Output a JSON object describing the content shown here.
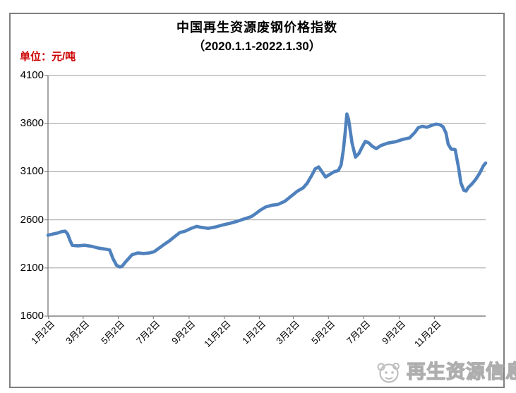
{
  "page": {
    "title_line1": "中国再生资源废钢价格指数",
    "title_line2": "（2020.1.1-2022.1.30）",
    "unit_label": "单位：元/吨",
    "watermark_text": "再生资源信息网"
  },
  "colors": {
    "line": "#4F81BD",
    "unit_label": "#CC0000",
    "grid": "#9a9a9a",
    "axis": "#808080",
    "frame": "#7f7f7f",
    "text": "#000000",
    "watermark": "#a0a0a0"
  },
  "chart_data": {
    "type": "line",
    "title": "中国再生资源废钢价格指数（2020.1.1-2022.1.30）",
    "ylabel": "元/吨",
    "ylim": [
      1600,
      4100
    ],
    "y_ticks": [
      4100,
      3600,
      3100,
      2600,
      2100,
      1600
    ],
    "x_tick_labels": [
      "1月2日",
      "3月2日",
      "5月2日",
      "7月2日",
      "9月2日",
      "11月2日",
      "1月2日",
      "3月2日",
      "5月2日",
      "7月2日",
      "9月2日",
      "11月2日"
    ],
    "x_tick_days": [
      1,
      61,
      122,
      183,
      245,
      306,
      367,
      426,
      487,
      548,
      610,
      671
    ],
    "x_range_days": [
      0,
      760
    ],
    "grid": true,
    "legend": "none",
    "series": [
      {
        "name": "废钢价格指数",
        "points": [
          [
            0,
            2440
          ],
          [
            8,
            2452
          ],
          [
            16,
            2462
          ],
          [
            24,
            2478
          ],
          [
            30,
            2482
          ],
          [
            34,
            2455
          ],
          [
            38,
            2390
          ],
          [
            42,
            2335
          ],
          [
            52,
            2330
          ],
          [
            64,
            2336
          ],
          [
            76,
            2324
          ],
          [
            88,
            2306
          ],
          [
            100,
            2296
          ],
          [
            107,
            2288
          ],
          [
            113,
            2195
          ],
          [
            119,
            2128
          ],
          [
            125,
            2110
          ],
          [
            129,
            2120
          ],
          [
            134,
            2158
          ],
          [
            139,
            2192
          ],
          [
            146,
            2238
          ],
          [
            156,
            2256
          ],
          [
            166,
            2250
          ],
          [
            176,
            2256
          ],
          [
            184,
            2268
          ],
          [
            192,
            2302
          ],
          [
            201,
            2342
          ],
          [
            211,
            2382
          ],
          [
            219,
            2422
          ],
          [
            229,
            2468
          ],
          [
            238,
            2482
          ],
          [
            248,
            2510
          ],
          [
            258,
            2532
          ],
          [
            266,
            2522
          ],
          [
            278,
            2512
          ],
          [
            291,
            2526
          ],
          [
            304,
            2548
          ],
          [
            316,
            2564
          ],
          [
            329,
            2586
          ],
          [
            341,
            2610
          ],
          [
            353,
            2634
          ],
          [
            361,
            2666
          ],
          [
            369,
            2702
          ],
          [
            378,
            2734
          ],
          [
            389,
            2752
          ],
          [
            399,
            2760
          ],
          [
            411,
            2792
          ],
          [
            421,
            2840
          ],
          [
            433,
            2898
          ],
          [
            443,
            2932
          ],
          [
            450,
            2980
          ],
          [
            458,
            3062
          ],
          [
            464,
            3130
          ],
          [
            470,
            3150
          ],
          [
            476,
            3098
          ],
          [
            482,
            3045
          ],
          [
            490,
            3075
          ],
          [
            497,
            3100
          ],
          [
            504,
            3112
          ],
          [
            509,
            3170
          ],
          [
            513,
            3330
          ],
          [
            516,
            3500
          ],
          [
            519,
            3700
          ],
          [
            522,
            3645
          ],
          [
            525,
            3520
          ],
          [
            528,
            3400
          ],
          [
            534,
            3252
          ],
          [
            540,
            3290
          ],
          [
            546,
            3362
          ],
          [
            551,
            3415
          ],
          [
            557,
            3400
          ],
          [
            563,
            3365
          ],
          [
            570,
            3340
          ],
          [
            578,
            3372
          ],
          [
            590,
            3398
          ],
          [
            604,
            3412
          ],
          [
            616,
            3436
          ],
          [
            628,
            3452
          ],
          [
            637,
            3508
          ],
          [
            643,
            3558
          ],
          [
            650,
            3572
          ],
          [
            658,
            3562
          ],
          [
            666,
            3582
          ],
          [
            674,
            3595
          ],
          [
            680,
            3590
          ],
          [
            686,
            3568
          ],
          [
            691,
            3505
          ],
          [
            695,
            3385
          ],
          [
            700,
            3335
          ],
          [
            707,
            3330
          ],
          [
            713,
            3140
          ],
          [
            717,
            2985
          ],
          [
            722,
            2908
          ],
          [
            726,
            2900
          ],
          [
            730,
            2938
          ],
          [
            736,
            2972
          ],
          [
            743,
            3022
          ],
          [
            750,
            3088
          ],
          [
            756,
            3160
          ],
          [
            760,
            3190
          ]
        ]
      }
    ]
  }
}
